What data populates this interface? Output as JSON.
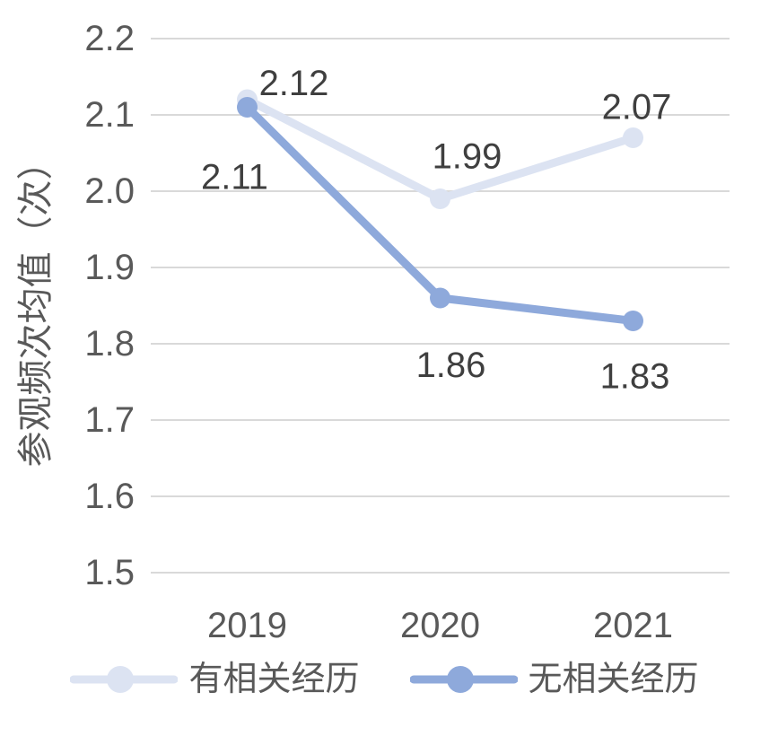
{
  "chart_data": {
    "type": "line",
    "x": [
      "2019",
      "2020",
      "2021"
    ],
    "series": [
      {
        "name": "有相关经历",
        "values": [
          2.12,
          1.99,
          2.07
        ],
        "labels": [
          "2.12",
          "1.99",
          "2.07"
        ],
        "color": "#dce3f2"
      },
      {
        "name": "无相关经历",
        "values": [
          2.11,
          1.86,
          1.83
        ],
        "labels": [
          "2.11",
          "1.86",
          "1.83"
        ],
        "color": "#8ea9db"
      }
    ],
    "title": "",
    "xlabel": "",
    "ylabel": "参观频次均值（次）",
    "ylim": [
      1.5,
      2.2
    ],
    "ytick_step": 0.1,
    "yticks": [
      "2.2",
      "2.1",
      "2.0",
      "1.9",
      "1.8",
      "1.7",
      "1.6",
      "1.5"
    ],
    "grid": true,
    "legend_position": "bottom",
    "colors": {
      "gridline": "#d9d9d9",
      "tick_text": "#595959",
      "data_label": "#3f3f3f",
      "background": "#ffffff"
    }
  }
}
